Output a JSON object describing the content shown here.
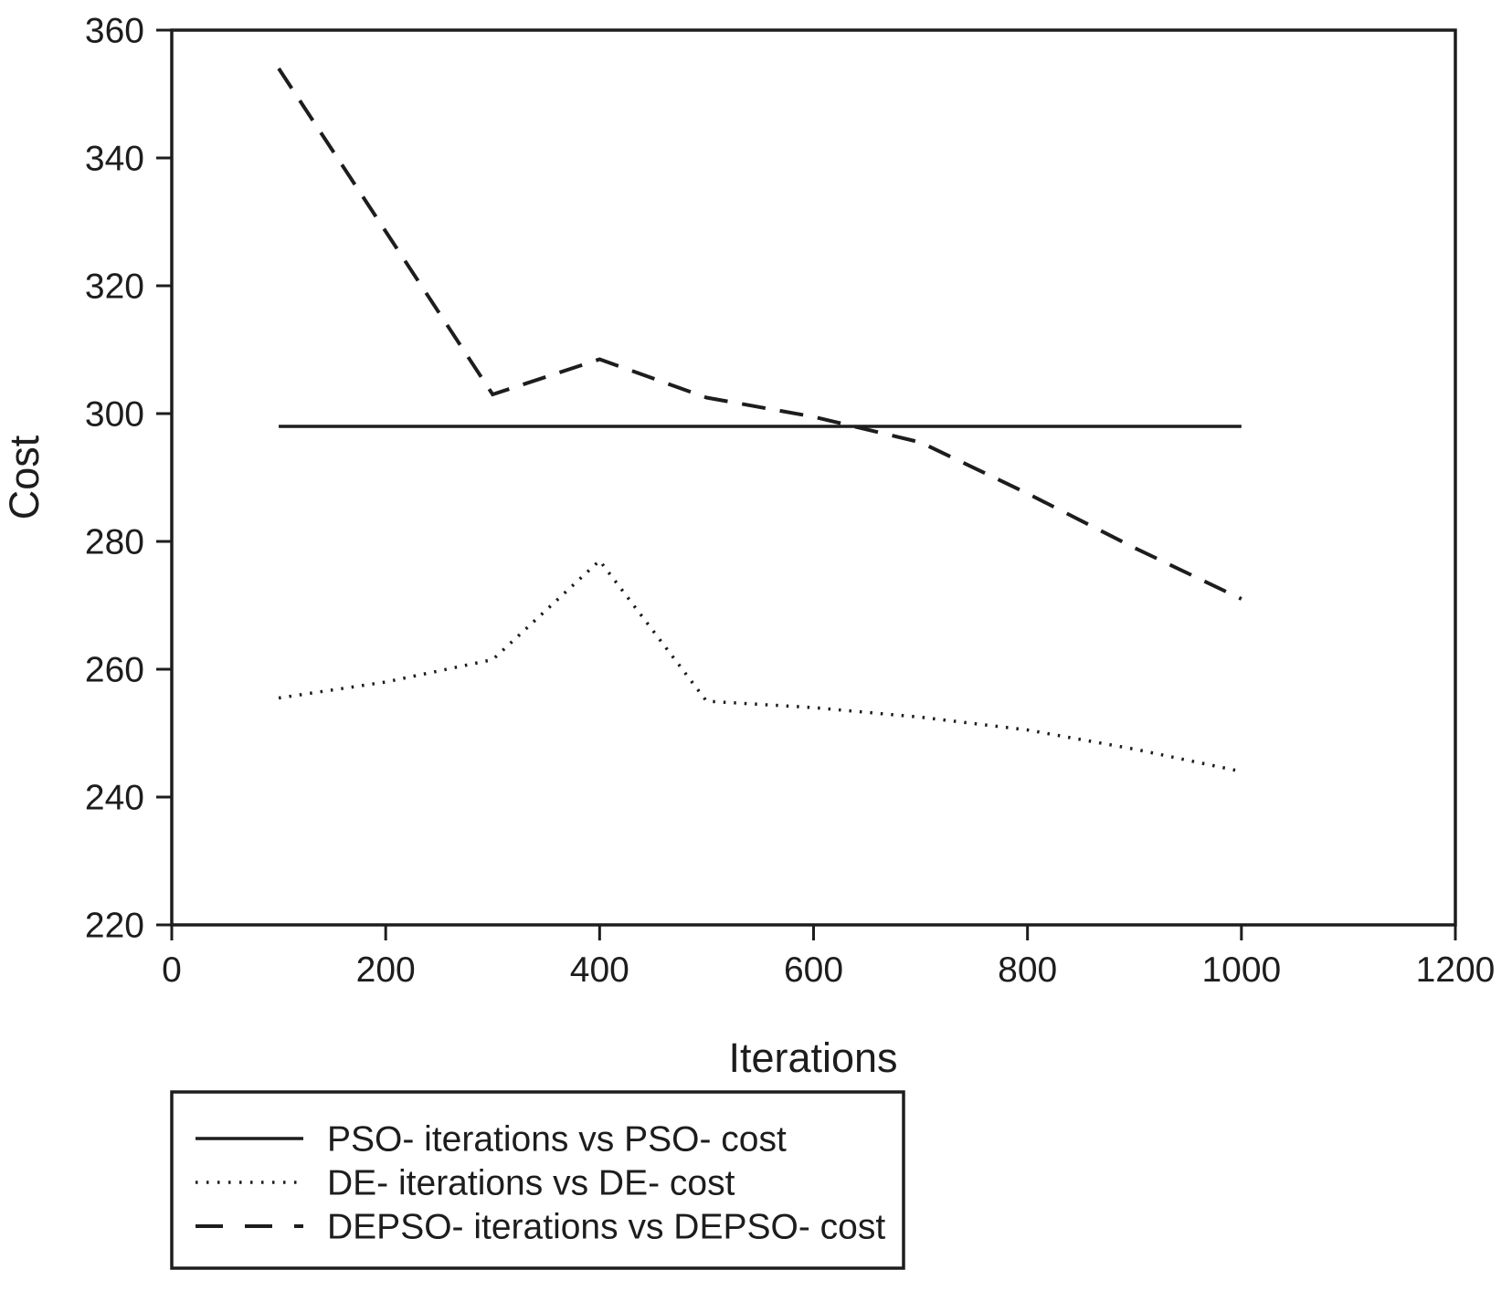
{
  "figure": {
    "background": "#ffffff",
    "line_color": "#1d1d1d"
  },
  "chart_data": {
    "type": "line",
    "title": "",
    "xlabel": "Iterations",
    "ylabel": "Cost",
    "xlim": [
      0,
      1200
    ],
    "ylim": [
      220,
      360
    ],
    "x_ticks": [
      0,
      200,
      400,
      600,
      800,
      1000,
      1200
    ],
    "y_ticks": [
      220,
      240,
      260,
      280,
      300,
      320,
      340,
      360
    ],
    "grid": false,
    "legend_position": "below-plot-left",
    "x": [
      100,
      200,
      300,
      400,
      500,
      600,
      700,
      800,
      900,
      1000
    ],
    "series": [
      {
        "name": "PSO",
        "legend_label": "PSO- iterations vs PSO- cost",
        "line_style": "solid",
        "values": [
          298,
          298,
          298,
          298,
          298,
          298,
          298,
          298,
          298,
          298
        ]
      },
      {
        "name": "DE",
        "legend_label": "DE- iterations vs DE- cost",
        "line_style": "dotted",
        "values": [
          255.5,
          258,
          261.5,
          277,
          255,
          254,
          252.5,
          250.5,
          247.5,
          244
        ]
      },
      {
        "name": "DEPSO",
        "legend_label": "DEPSO- iterations vs DEPSO- cost",
        "line_style": "dashed",
        "values": [
          354,
          328.5,
          303,
          308.5,
          302.5,
          299.5,
          295.5,
          287.5,
          279,
          271
        ]
      }
    ]
  }
}
